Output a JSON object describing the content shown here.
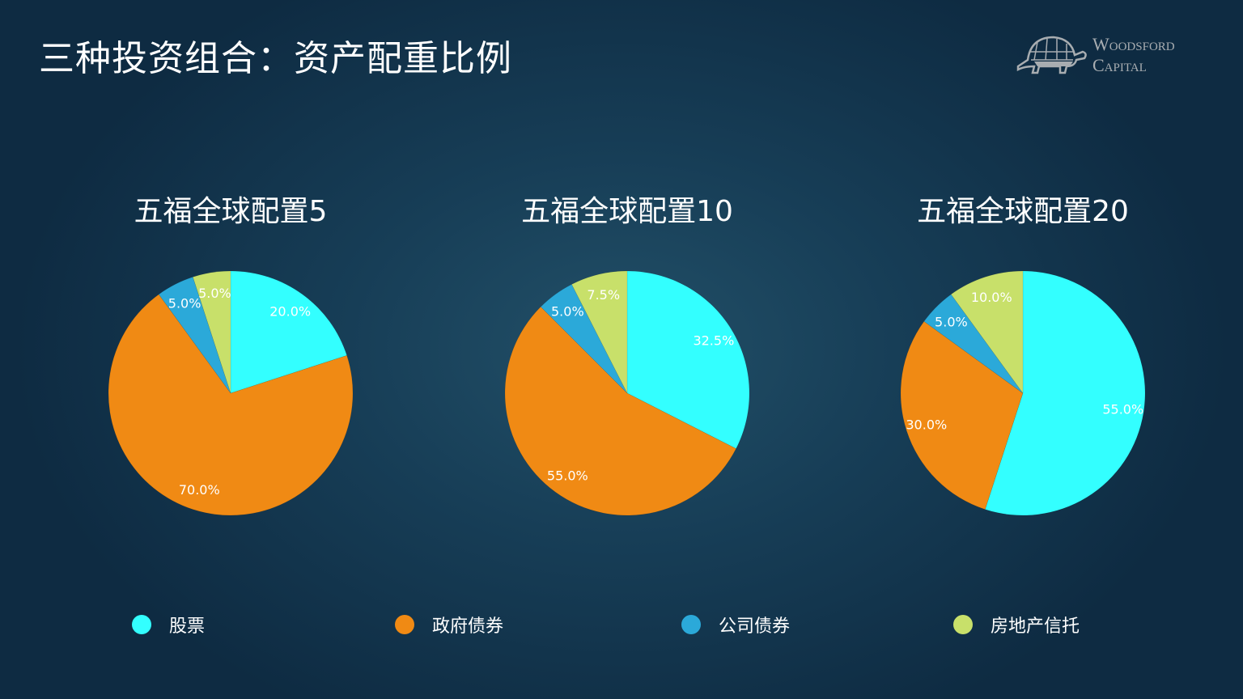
{
  "title": "三种投资组合：资产配重比例",
  "logo": {
    "line1": "Woodsford",
    "line2": "Capital"
  },
  "colors": {
    "股票": "#33FFFF",
    "政府债券": "#F08A14",
    "公司债券": "#2BA9D9",
    "房地产信托": "#C8E06A"
  },
  "chart_data": [
    {
      "type": "pie",
      "title": "五福全球配置5",
      "categories": [
        "股票",
        "政府债券",
        "公司债券",
        "房地产信托"
      ],
      "values": [
        20.0,
        70.0,
        5.0,
        5.0
      ],
      "labels": [
        "20.0%",
        "70.0%",
        "5.0%",
        "5.0%"
      ]
    },
    {
      "type": "pie",
      "title": "五福全球配置10",
      "categories": [
        "股票",
        "政府债券",
        "公司债券",
        "房地产信托"
      ],
      "values": [
        32.5,
        55.0,
        5.0,
        7.5
      ],
      "labels": [
        "32.5%",
        "55.0%",
        "5.0%",
        "7.5%"
      ]
    },
    {
      "type": "pie",
      "title": "五福全球配置20",
      "categories": [
        "股票",
        "政府债券",
        "公司债券",
        "房地产信托"
      ],
      "values": [
        55.0,
        30.0,
        5.0,
        10.0
      ],
      "labels": [
        "55.0%",
        "30.0%",
        "5.0%",
        "10.0%"
      ]
    }
  ],
  "legend": [
    "股票",
    "政府债券",
    "公司债券",
    "房地产信托"
  ],
  "legend_placement": "bottom"
}
